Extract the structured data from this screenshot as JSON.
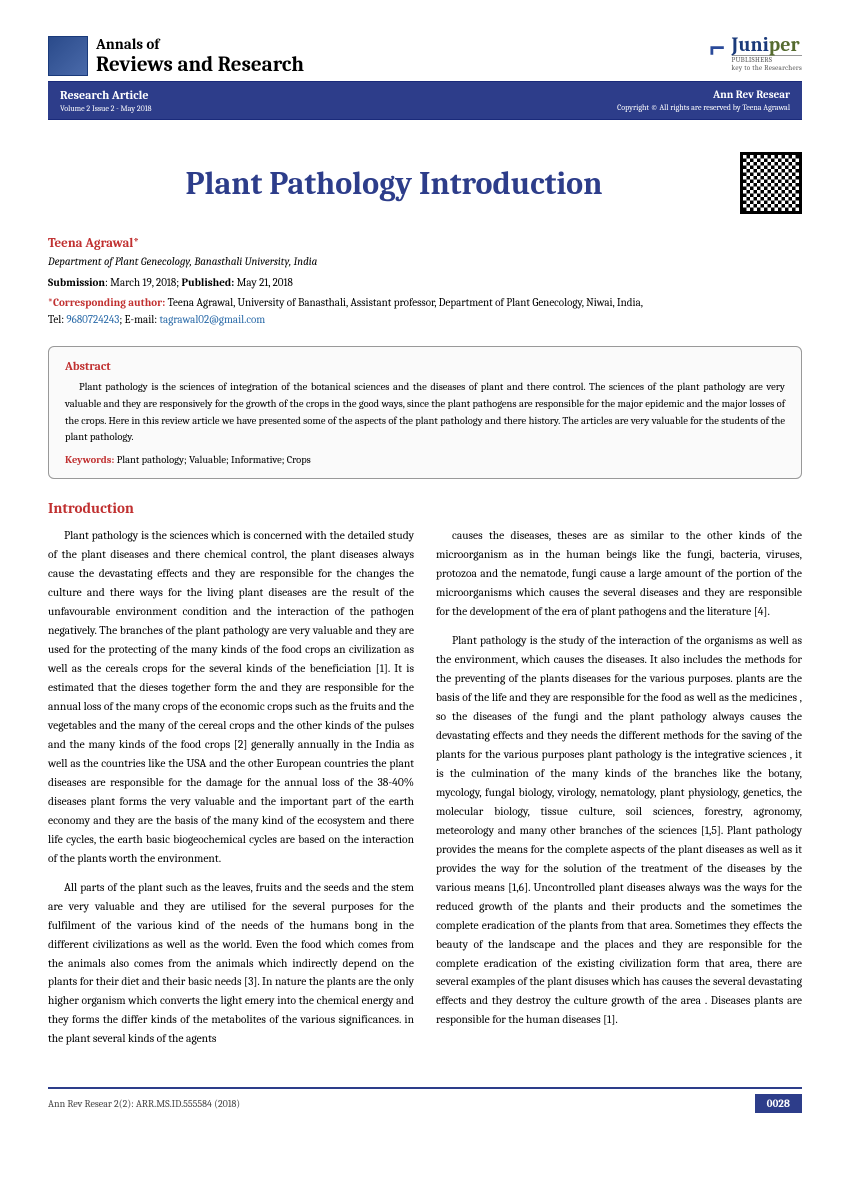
{
  "journal": {
    "line1": "Annals of",
    "line2": "Reviews and Research"
  },
  "publisher": {
    "name1": "Juni",
    "name2": "per",
    "sub": "PUBLISHERS",
    "tag": "key to the Researchers"
  },
  "bar": {
    "left_title": "Research Article",
    "left_sub": "Volume 2 Issue 2 - May 2018",
    "right_title": "Ann Rev Resear",
    "right_sub": "Copyright © All rights are reserved by Teena Agrawal"
  },
  "title": "Plant Pathology Introduction",
  "author": "Teena Agrawal*",
  "dept": "Department of Plant Genecology, Banasthali University, India",
  "sub_label": "Submission",
  "sub_date": ": March 19, 2018; ",
  "pub_label": "Published:",
  "pub_date": " May 21, 2018",
  "corr_label": "*Corresponding author:",
  "corr_text": " Teena Agrawal, University of Banasthali, Assistant professor, Department of Plant Genecology, Niwai, India,",
  "tel_label": "Tel: ",
  "tel": "9680724243",
  "em_label": "; E-mail: ",
  "em": "tagrawal02@gmail.com",
  "abs_h": "Abstract",
  "abs_t": "Plant pathology is the sciences of integration of the botanical sciences and the diseases of plant and there control. The sciences of the plant pathology are very valuable and they are responsively for the growth of the crops in the good ways, since the plant pathogens are responsible for the major epidemic and the major losses of the crops. Here in this review article we have presented some of the aspects of the plant pathology and there history. The articles are very valuable for the students of the plant pathology.",
  "kw_label": "Keywords:",
  "kw": " Plant pathology; Valuable; Informative; Crops",
  "intro_h": "Introduction",
  "l1": "Plant pathology is the sciences which is concerned with the detailed study of the plant diseases and there chemical control, the plant diseases always cause the devastating effects and they are responsible for the changes the culture and there ways for the living plant diseases are the result of the unfavourable environment condition and the interaction of the pathogen negatively. The branches of the plant pathology are very valuable and they are used for the protecting of the many kinds of the food crops an civilization as well as the cereals crops for the several kinds of the beneficiation [1]. It is estimated that the dieses together form the and they are responsible for the annual loss of the many crops of the economic crops such as the fruits and the vegetables and the many of the cereal crops and the other kinds of the pulses and the many kinds of the food crops [2] generally annually in the India as well as the countries like the USA and the other European countries the plant diseases are responsible for the damage for the annual loss of the 38-40% diseases plant forms the very valuable and the important part of the earth economy and they are the basis of the many kind of the ecosystem and there life cycles, the earth basic biogeochemical cycles are based on the interaction of the plants worth the environment.",
  "l2": "All parts of the plant such as the leaves, fruits and the seeds and the stem are very valuable and they are utilised for the several purposes for the fulfilment of the various kind of the needs of the humans bong in the different civilizations as well as the world. Even the food which comes from the animals also comes from the animals which indirectly depend on the plants for their diet and their basic needs [3]. In nature the plants are the only higher organism which converts the light emery into the chemical energy and they forms the differ kinds of the metabolites of the various significances. in the plant several kinds of the agents",
  "r1": "causes the diseases, theses are as similar to the other kinds of the microorganism as in the human beings like the fungi, bacteria, viruses, protozoa and the nematode, fungi cause a large amount of the portion of the microorganisms which causes the several diseases and they are responsible for the development of the era of plant pathogens and the literature [4].",
  "r2": "Plant pathology is the study of the interaction of the organisms as well as the environment, which causes the diseases. It also includes the methods for the preventing of the plants diseases for the various purposes. plants are the basis of the life and they are responsible for the food as well as the medicines , so the diseases of the fungi and the plant pathology always causes the devastating effects and they needs the different methods for the saving of the plants for the various purposes plant pathology is the integrative sciences , it is the culmination of the many kinds of the branches like the botany, mycology, fungal biology, virology, nematology, plant physiology, genetics, the molecular biology, tissue culture, soil sciences, forestry, agronomy, meteorology and many other branches of the sciences [1,5]. Plant pathology provides the means for the complete aspects of the plant diseases as well as it provides the way for the solution of the treatment of the diseases by the various means [1,6]. Uncontrolled plant diseases always was the ways for the reduced growth of the plants and their products and the sometimes the complete eradication of the plants from that area. Sometimes they effects the beauty of the landscape and the places and they are responsible for the complete eradication of the existing civilization form that area, there are several examples of the plant disuses which has causes the several devastating effects and they destroy the culture growth of the area . Diseases plants are responsible for the human diseases [1].",
  "ftr_l": "Ann Rev Resear 2(2): ARR.MS.ID.555584 (2018)",
  "ftr_r": "0028"
}
